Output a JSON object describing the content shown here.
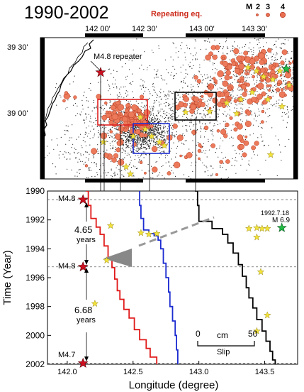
{
  "header": {
    "title": "1990-2002",
    "repeating_label": "Repeating  eq.",
    "legend_m_label": "M",
    "legend_mags": [
      "2",
      "3",
      "4"
    ]
  },
  "map": {
    "lon_ticks": [
      "142 00'",
      "142 30'",
      "143 00'",
      "143 30'"
    ],
    "lat_ticks": [
      "39 30'",
      "39 00'"
    ],
    "repeater_label": "M4.8 repeater",
    "mainshock_color": "#22bb44",
    "repeater_color": "#cc1020",
    "aftershock_star_color": "#f2e23a",
    "box_colors": {
      "red": "#e02020",
      "blue": "#2030d0",
      "black": "#000000"
    }
  },
  "timeline": {
    "events": [
      {
        "label": "M4.8",
        "year": 1990.6
      },
      {
        "label": "M4.8",
        "year": 1995.25
      },
      {
        "label": "M4.7",
        "year": 2001.93
      }
    ],
    "intervals": [
      {
        "value": "4.65",
        "unit": "years"
      },
      {
        "value": "6.68",
        "unit": "years"
      }
    ],
    "mainshock_date": "1992.7.18",
    "mainshock_mag": "M 6.9",
    "scale_zero": "0",
    "scale_unit": "cm",
    "scale_fifty": "50",
    "scale_caption": "Slip"
  },
  "chart_data": {
    "type": "line",
    "title": "1990-2002",
    "xlabel": "Longitude (degree)",
    "ylabel": "Time (Year)",
    "xlim": [
      141.85,
      143.75
    ],
    "ylim": [
      1990,
      2002
    ],
    "x_ticks": [
      "142.0",
      "142.5",
      "143.0",
      "143.5"
    ],
    "y_ticks": [
      "1990",
      "1992",
      "1994",
      "1996",
      "1998",
      "2000",
      "2002"
    ],
    "series": [
      {
        "color": "#e01818",
        "points": [
          [
            142.14,
            1990
          ],
          [
            142.16,
            1991
          ],
          [
            142.18,
            1991.9
          ],
          [
            142.22,
            1992.5
          ],
          [
            142.25,
            1993
          ],
          [
            142.28,
            1993.8
          ],
          [
            142.31,
            1994.6
          ],
          [
            142.34,
            1995.3
          ],
          [
            142.36,
            1996.1
          ],
          [
            142.38,
            1996.9
          ],
          [
            142.4,
            1997.5
          ],
          [
            142.43,
            1998.2
          ],
          [
            142.47,
            1998.8
          ],
          [
            142.51,
            1999.6
          ],
          [
            142.55,
            2000.3
          ],
          [
            142.6,
            2000.9
          ],
          [
            142.63,
            2001.5
          ],
          [
            142.68,
            2002
          ]
        ]
      },
      {
        "color": "#1c2cd0",
        "points": [
          [
            142.55,
            1990
          ],
          [
            142.55,
            1991
          ],
          [
            142.56,
            1991.9
          ],
          [
            142.58,
            1992.7
          ],
          [
            142.62,
            1992.95
          ],
          [
            142.66,
            1993.1
          ],
          [
            142.69,
            1993.4
          ],
          [
            142.71,
            1994
          ],
          [
            142.73,
            1995
          ],
          [
            142.75,
            1996
          ],
          [
            142.77,
            1997
          ],
          [
            142.78,
            1998
          ],
          [
            142.8,
            1999
          ],
          [
            142.82,
            2000
          ],
          [
            142.83,
            2001
          ],
          [
            142.84,
            2002
          ]
        ]
      },
      {
        "color": "#000000",
        "points": [
          [
            142.97,
            1990
          ],
          [
            142.99,
            1991
          ],
          [
            143.0,
            1992.1
          ],
          [
            143.1,
            1992.6
          ],
          [
            143.18,
            1993
          ],
          [
            143.22,
            1993.6
          ],
          [
            143.26,
            1994.3
          ],
          [
            143.3,
            1995.1
          ],
          [
            143.33,
            1995.9
          ],
          [
            143.36,
            1996.7
          ],
          [
            143.38,
            1997.4
          ],
          [
            143.41,
            1998.1
          ],
          [
            143.44,
            1998.9
          ],
          [
            143.48,
            1999.7
          ],
          [
            143.51,
            2000.4
          ],
          [
            143.54,
            2001.1
          ],
          [
            143.56,
            2001.7
          ],
          [
            143.58,
            2002
          ]
        ]
      }
    ],
    "mainshock": {
      "x": 143.63,
      "y": 1992.55
    },
    "aftershock_stars": [
      [
        142.56,
        1992.9
      ],
      [
        142.62,
        1993.0
      ],
      [
        142.68,
        1992.95
      ],
      [
        142.3,
        1994.8
      ],
      [
        142.21,
        1997.8
      ],
      [
        143.38,
        1992.6
      ],
      [
        143.44,
        1992.55
      ],
      [
        143.48,
        1992.6
      ],
      [
        143.52,
        1992.6
      ],
      [
        143.47,
        1995.6
      ],
      [
        143.44,
        1999.7
      ],
      [
        143.52,
        1998.6
      ],
      [
        142.33,
        1992.4
      ],
      [
        143.44,
        1993.2
      ]
    ],
    "repeater_events_x": 142.12,
    "slip_scale_cm": 50
  }
}
